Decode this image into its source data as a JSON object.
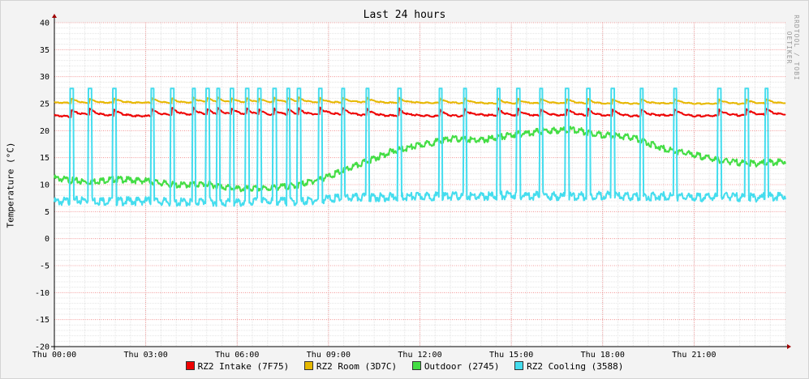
{
  "chart_data": {
    "type": "line",
    "title": "Last 24 hours",
    "ylabel": "Temperature (°C)",
    "watermark": "RRDTOOL / TOBI OETIKER",
    "ylim": [
      -20,
      40
    ],
    "yticks": [
      40,
      35,
      30,
      25,
      20,
      15,
      10,
      5,
      0,
      -5,
      -10,
      -15,
      -20
    ],
    "xticks": [
      "Thu 00:00",
      "Thu 03:00",
      "Thu 06:00",
      "Thu 09:00",
      "Thu 12:00",
      "Thu 15:00",
      "Thu 18:00",
      "Thu 21:00"
    ],
    "xticks_hours": [
      0,
      3,
      6,
      9,
      12,
      15,
      18,
      21
    ],
    "xlim_hours": [
      0,
      24
    ],
    "grid": true,
    "legend_position": "bottom",
    "series": [
      {
        "name": "RZ2 Intake (7F75)",
        "color": "#ee0000",
        "x": [
          0.0,
          0.5,
          1.0,
          2.0,
          3.0,
          4.0,
          5.0,
          6.0,
          7.0,
          8.0,
          9.0,
          10.0,
          11.0,
          12.0,
          13.0,
          14.0,
          15.0,
          16.0,
          17.0,
          18.0,
          19.0,
          20.0,
          21.0,
          22.0,
          23.0,
          24.0
        ],
        "y": [
          22.8,
          22.6,
          23.0,
          22.8,
          22.7,
          23.0,
          22.9,
          23.0,
          22.8,
          22.9,
          23.1,
          22.9,
          22.8,
          22.8,
          22.6,
          22.9,
          22.8,
          22.8,
          22.9,
          22.8,
          22.7,
          22.9,
          22.7,
          22.8,
          22.9,
          23.0
        ]
      },
      {
        "name": "RZ2 Room (3D7C)",
        "color": "#e6b800",
        "x": [
          0.0,
          1.0,
          2.0,
          3.0,
          4.0,
          5.0,
          6.0,
          7.0,
          8.0,
          9.0,
          10.0,
          11.0,
          12.0,
          13.0,
          14.0,
          15.0,
          16.0,
          17.0,
          18.0,
          19.0,
          20.0,
          21.0,
          22.0,
          23.0,
          24.0
        ],
        "y": [
          25.2,
          25.1,
          25.2,
          25.2,
          25.1,
          25.3,
          25.2,
          25.2,
          25.3,
          25.2,
          25.3,
          25.2,
          25.2,
          25.1,
          25.1,
          25.0,
          25.1,
          25.1,
          25.0,
          25.0,
          25.1,
          25.0,
          25.0,
          25.0,
          25.1
        ]
      },
      {
        "name": "Outdoor (2745)",
        "color": "#44dd44",
        "x": [
          0.0,
          1.0,
          2.0,
          3.0,
          4.0,
          5.0,
          6.0,
          7.0,
          8.0,
          9.0,
          10.0,
          11.0,
          12.0,
          13.0,
          14.0,
          15.0,
          16.0,
          17.0,
          18.0,
          19.0,
          20.0,
          21.0,
          22.0,
          23.0,
          24.0
        ],
        "y": [
          11.5,
          10.8,
          11.3,
          11.0,
          10.2,
          10.4,
          9.5,
          9.6,
          10.2,
          11.8,
          14.0,
          16.3,
          17.6,
          18.8,
          18.5,
          19.5,
          20.2,
          20.5,
          19.5,
          19.0,
          17.0,
          15.8,
          14.6,
          14.2,
          14.6
        ]
      },
      {
        "name": "RZ2 Cooling (3588)",
        "color": "#44ddee",
        "x": [
          0.0,
          1.0,
          2.0,
          3.0,
          4.0,
          5.0,
          6.0,
          7.0,
          8.0,
          9.0,
          10.0,
          11.0,
          12.0,
          13.0,
          14.0,
          15.0,
          16.0,
          17.0,
          18.0,
          19.0,
          20.0,
          21.0,
          22.0,
          23.0,
          24.0
        ],
        "y": [
          7.2,
          7.5,
          7.3,
          7.4,
          7.1,
          7.3,
          7.0,
          7.4,
          7.2,
          7.8,
          8.0,
          8.1,
          8.2,
          8.3,
          8.2,
          8.5,
          8.3,
          8.2,
          8.4,
          8.1,
          8.3,
          8.0,
          8.2,
          8.0,
          8.3
        ],
        "spikes_hours": [
          0.55,
          1.15,
          1.95,
          3.2,
          3.85,
          4.55,
          5.0,
          5.35,
          5.8,
          6.3,
          6.7,
          7.2,
          7.65,
          8.0,
          8.7,
          9.45,
          10.25,
          11.3,
          12.65,
          13.45,
          14.55,
          15.2,
          15.95,
          16.8,
          17.5,
          18.3,
          19.25,
          20.35,
          21.8,
          22.7,
          23.35
        ],
        "spike_peak": 27.8
      }
    ]
  }
}
